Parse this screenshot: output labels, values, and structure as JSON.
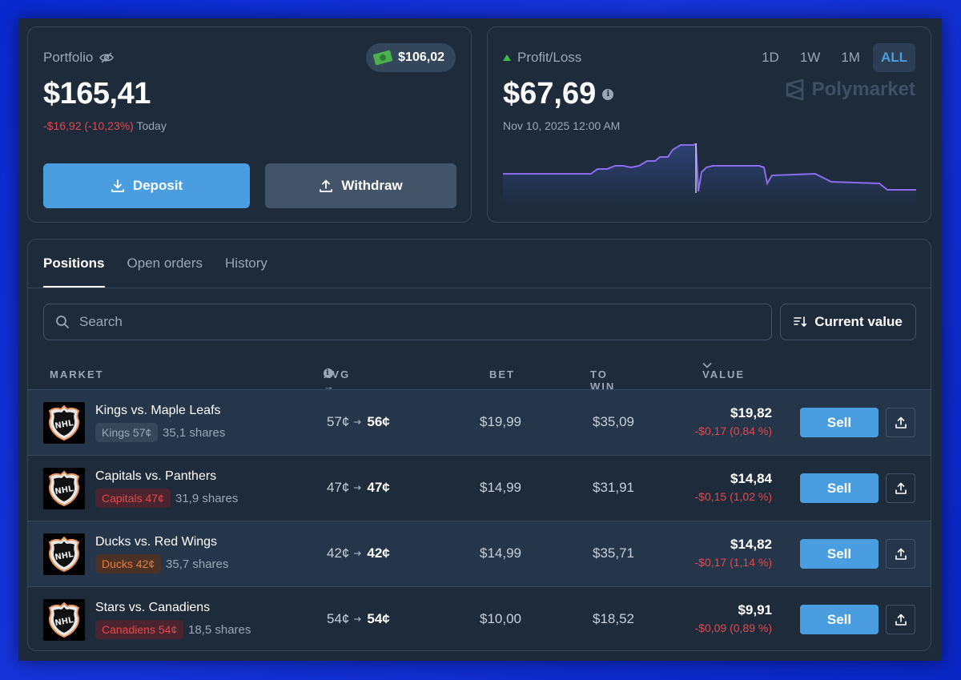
{
  "portfolio": {
    "label": "Portfolio",
    "value": "$165,41",
    "change": "-$16,92 (-10,23%)",
    "change_period": "Today",
    "cash": "$106,02",
    "deposit_label": "Deposit",
    "withdraw_label": "Withdraw"
  },
  "pnl": {
    "label": "Profit/Loss",
    "value": "$67,69",
    "date": "Nov 10, 2025 12:00 AM",
    "ranges": [
      "1D",
      "1W",
      "1M",
      "ALL"
    ],
    "active_range": "ALL",
    "brand": "Polymarket",
    "line_color": "#8b6cf0",
    "accent_color": "#4a9ee0"
  },
  "positions": {
    "tabs": [
      "Positions",
      "Open orders",
      "History"
    ],
    "active_tab": "Positions",
    "search_placeholder": "Search",
    "sort_label": "Current value",
    "columns": {
      "market": "MARKET",
      "avg_now": "AVG → NOW",
      "bet": "BET",
      "to_win": "TO WIN",
      "value": "VALUE"
    },
    "rows": [
      {
        "title": "Kings vs. Maple Leafs",
        "outcome": "Kings 57¢",
        "shares": "35,1 shares",
        "avg": "57¢",
        "now": "56¢",
        "bet": "$19,99",
        "to_win": "$35,09",
        "value": "$19,82",
        "value_change": "-$0,17 (0,84 %)",
        "sell_label": "Sell"
      },
      {
        "title": "Capitals vs. Panthers",
        "outcome": "Capitals 47¢",
        "shares": "31,9 shares",
        "avg": "47¢",
        "now": "47¢",
        "bet": "$14,99",
        "to_win": "$31,91",
        "value": "$14,84",
        "value_change": "-$0,15 (1,02 %)",
        "sell_label": "Sell"
      },
      {
        "title": "Ducks vs. Red Wings",
        "outcome": "Ducks 42¢",
        "shares": "35,7 shares",
        "avg": "42¢",
        "now": "42¢",
        "bet": "$14,99",
        "to_win": "$35,71",
        "value": "$14,82",
        "value_change": "-$0,17 (1,14 %)",
        "sell_label": "Sell"
      },
      {
        "title": "Stars vs. Canadiens",
        "outcome": "Canadiens 54¢",
        "shares": "18,5 shares",
        "avg": "54¢",
        "now": "54¢",
        "bet": "$10,00",
        "to_win": "$18,52",
        "value": "$9,91",
        "value_change": "-$0,09 (0,89 %)",
        "sell_label": "Sell"
      }
    ],
    "logo_icon": "nhl-logo-icon"
  }
}
